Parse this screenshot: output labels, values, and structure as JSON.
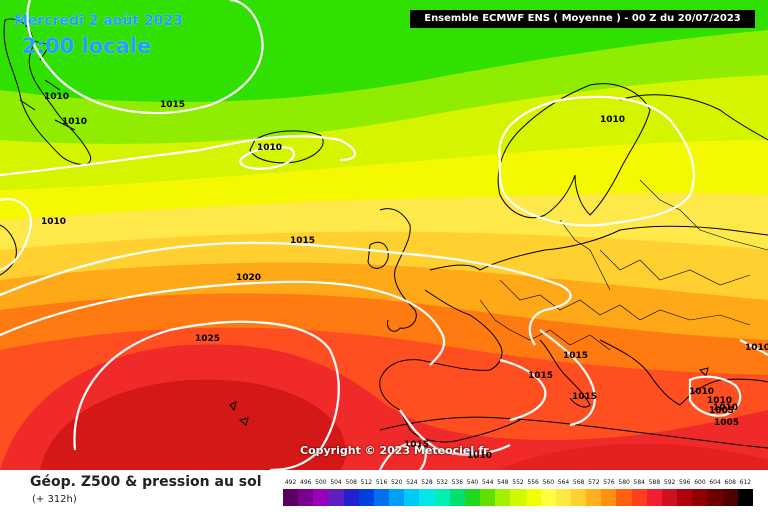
{
  "header": {
    "date": "Mercredi 2 août 2023",
    "local_time": "2:00 locale",
    "run_info": "Ensemble ECMWF ENS   ( Moyenne )   -  00 Z du 20/07/2023"
  },
  "footer": {
    "parameter": "Géop. Z500 & pression au sol",
    "lead_time": "(+ 312h)",
    "copyright": "Copyright © 2023 Meteociel.fr"
  },
  "legend": {
    "values": [
      "492",
      "496",
      "500",
      "504",
      "508",
      "512",
      "516",
      "520",
      "524",
      "528",
      "532",
      "536",
      "540",
      "544",
      "548",
      "552",
      "556",
      "560",
      "564",
      "568",
      "572",
      "576",
      "580",
      "584",
      "588",
      "592",
      "596",
      "600",
      "604",
      "608",
      "612"
    ],
    "colors": [
      "#5a0060",
      "#7a0090",
      "#9a00b8",
      "#6020c0",
      "#2020d0",
      "#0040e0",
      "#0070f0",
      "#00a0f8",
      "#00c8f8",
      "#00e8e8",
      "#00f0b0",
      "#00e070",
      "#20d820",
      "#60e000",
      "#a0f000",
      "#d0f800",
      "#f0ff00",
      "#ffff40",
      "#ffe840",
      "#ffd030",
      "#ffb020",
      "#ff9010",
      "#ff6010",
      "#ff4020",
      "#f02030",
      "#d01020",
      "#b00010",
      "#900000",
      "#700000",
      "#500000",
      "#000000"
    ]
  },
  "isobars": {
    "labels": [
      "1010",
      "1010",
      "1015",
      "1010",
      "1010",
      "1015",
      "1010",
      "1020",
      "1025",
      "1015",
      "1015",
      "1015",
      "1015",
      "1010",
      "1010",
      "1010",
      "1010",
      "1005",
      "1005",
      "1010"
    ]
  }
}
